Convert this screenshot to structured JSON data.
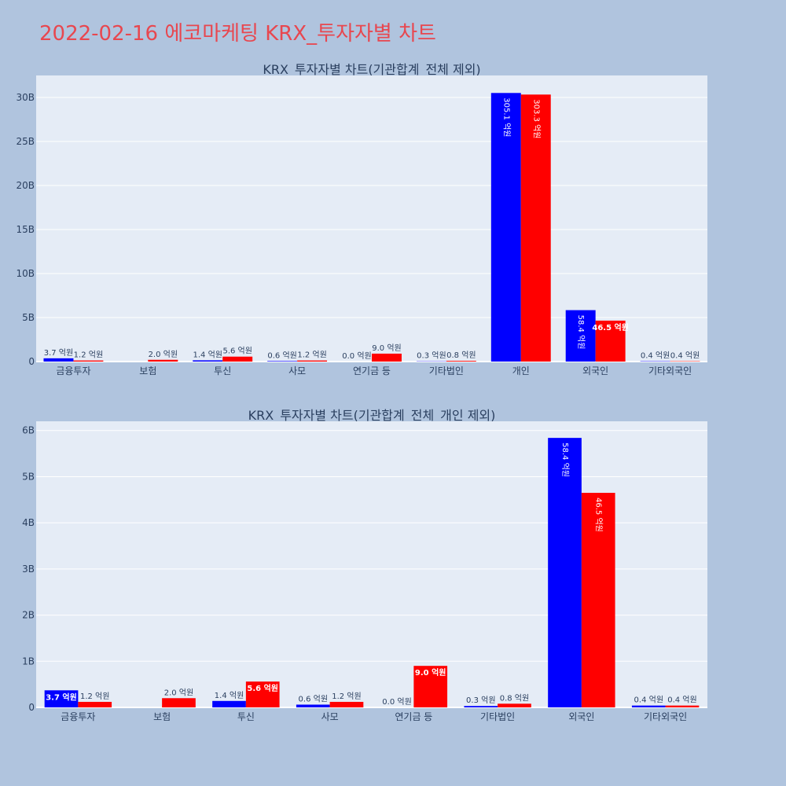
{
  "page": {
    "title": "2022-02-16 에코마케팅 KRX_투자자별 차트"
  },
  "colors": {
    "background": "#b0c4de",
    "plot_background": "#e5ecf6",
    "title_color": "#e8474f",
    "series_colors": [
      "#0000ff",
      "#ff0000"
    ]
  },
  "chart_data": [
    {
      "type": "bar",
      "title": "KRX_투자자별 차트(기관합계_전체 제외)",
      "categories": [
        "금융투자",
        "보험",
        "투신",
        "사모",
        "연기금 등",
        "기타법인",
        "개인",
        "외국인",
        "기타외국인"
      ],
      "series": [
        {
          "values": [
            370000000,
            0,
            140000000,
            60000000,
            0,
            30000000,
            30510000000,
            5840000000,
            40000000
          ],
          "labels": [
            "3.7 억원",
            "",
            "1.4 억원",
            "0.6 억원",
            "0.0 억원",
            "0.3 억원",
            "305.1 억원",
            "58.4 억원",
            "0.4 억원"
          ]
        },
        {
          "values": [
            120000000,
            200000000,
            560000000,
            120000000,
            900000000,
            80000000,
            30330000000,
            4650000000,
            40000000
          ],
          "labels": [
            "1.2 억원",
            "2.0 억원",
            "5.6 억원",
            "1.2 억원",
            "9.0 억원",
            "0.8 억원",
            "303.3 억원",
            "46.5 억원",
            "0.4 억원"
          ]
        }
      ],
      "yticks": [
        0,
        5000000000,
        10000000000,
        15000000000,
        20000000000,
        25000000000,
        30000000000
      ],
      "yticklabels": [
        "0",
        "5B",
        "10B",
        "15B",
        "20B",
        "25B",
        "30B"
      ],
      "ylim": [
        0,
        32500000000
      ],
      "grid": true
    },
    {
      "type": "bar",
      "title": "KRX_투자자별 차트(기관합계_전체_개인 제외)",
      "categories": [
        "금융투자",
        "보험",
        "투신",
        "사모",
        "연기금 등",
        "기타법인",
        "외국인",
        "기타외국인"
      ],
      "series": [
        {
          "values": [
            370000000,
            0,
            140000000,
            60000000,
            0,
            30000000,
            5840000000,
            40000000
          ],
          "labels": [
            "3.7 억원",
            "",
            "1.4 억원",
            "0.6 억원",
            "0.0 억원",
            "0.3 억원",
            "58.4 억원",
            "0.4 억원"
          ]
        },
        {
          "values": [
            120000000,
            200000000,
            560000000,
            120000000,
            900000000,
            80000000,
            4650000000,
            40000000
          ],
          "labels": [
            "1.2 억원",
            "2.0 억원",
            "5.6 억원",
            "1.2 억원",
            "9.0 억원",
            "0.8 억원",
            "46.5 억원",
            "0.4 억원"
          ]
        }
      ],
      "yticks": [
        0,
        1000000000,
        2000000000,
        3000000000,
        4000000000,
        5000000000,
        6000000000
      ],
      "yticklabels": [
        "0",
        "1B",
        "2B",
        "3B",
        "4B",
        "5B",
        "6B"
      ],
      "ylim": [
        0,
        6200000000
      ],
      "grid": true
    }
  ]
}
